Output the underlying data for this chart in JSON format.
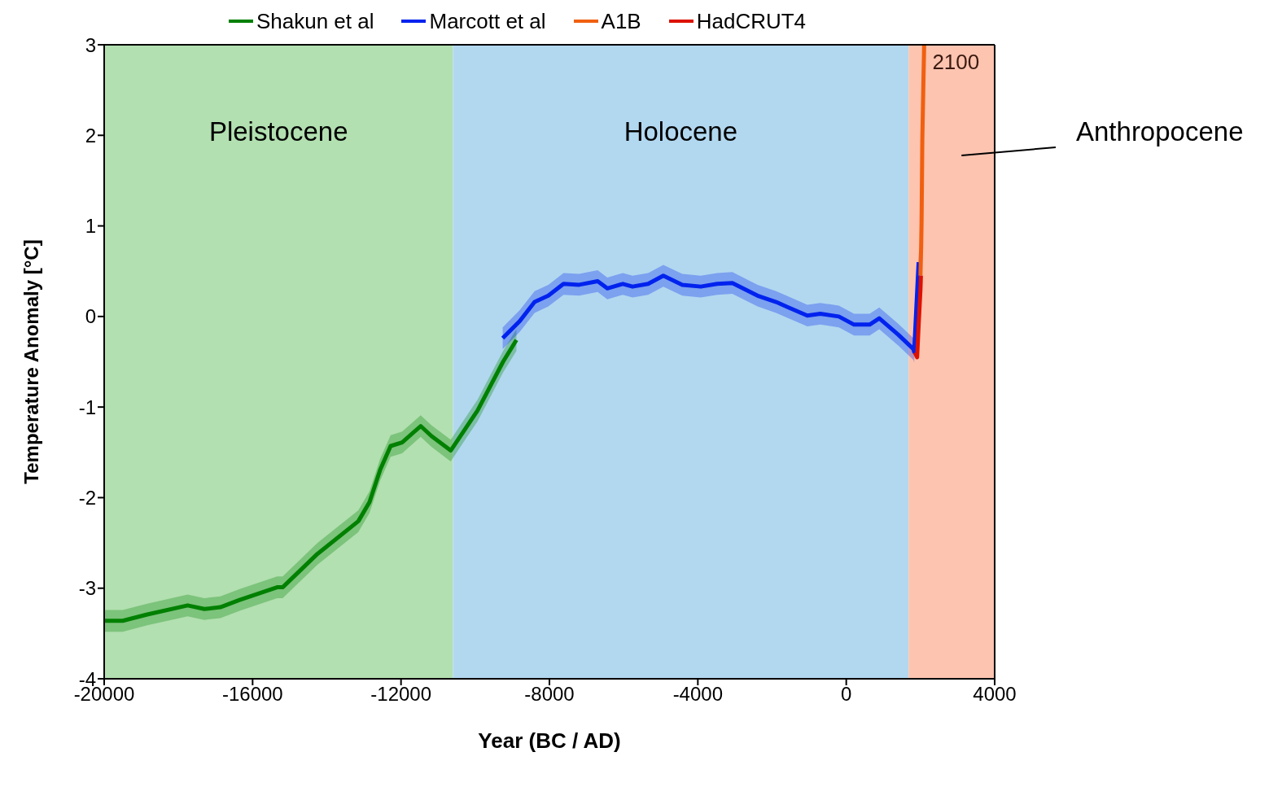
{
  "chart_data": {
    "type": "line",
    "xlabel": "Year (BC / AD)",
    "ylabel": "Temperature Anomaly [°C]",
    "xlim": [
      -20000,
      4000
    ],
    "xticks": [
      -20000,
      -16000,
      -12000,
      -8000,
      -4000,
      0,
      4000
    ],
    "ylim": [
      -4,
      3
    ],
    "yticks": [
      -4,
      -3,
      -2,
      -1,
      0,
      1,
      2,
      3
    ],
    "legend": "top",
    "marker": "none",
    "line_style": "solid",
    "series": [
      {
        "name": "Shakun et al",
        "color": "#008000",
        "x": [
          -20000,
          -19500,
          -18840,
          -17750,
          -17300,
          -16870,
          -16350,
          -15340,
          -15190,
          -14250,
          -13150,
          -12850,
          -12560,
          -12280,
          -11970,
          -11470,
          -11180,
          -10660,
          -10220,
          -9940,
          -9570,
          -9250,
          -8890
        ],
        "values": [
          -3.36,
          -3.36,
          -3.29,
          -3.19,
          -3.23,
          -3.21,
          -3.13,
          -2.99,
          -2.99,
          -2.62,
          -2.26,
          -2.05,
          -1.69,
          -1.43,
          -1.39,
          -1.21,
          -1.32,
          -1.48,
          -1.21,
          -1.04,
          -0.75,
          -0.5,
          -0.26
        ],
        "lower": [
          -3.48,
          -3.48,
          -3.41,
          -3.31,
          -3.35,
          -3.33,
          -3.25,
          -3.11,
          -3.11,
          -2.74,
          -2.38,
          -2.17,
          -1.81,
          -1.55,
          -1.51,
          -1.33,
          -1.44,
          -1.6,
          -1.33,
          -1.16,
          -0.87,
          -0.62,
          -0.38
        ],
        "upper": [
          -3.24,
          -3.24,
          -3.17,
          -3.07,
          -3.11,
          -3.09,
          -3.01,
          -2.87,
          -2.87,
          -2.5,
          -2.14,
          -1.93,
          -1.57,
          -1.31,
          -1.27,
          -1.09,
          -1.2,
          -1.36,
          -1.09,
          -0.92,
          -0.63,
          -0.38,
          -0.14
        ]
      },
      {
        "name": "Marcott et al",
        "color": "#0022ee",
        "x": [
          -9260,
          -8800,
          -8400,
          -8030,
          -7620,
          -7200,
          -6700,
          -6440,
          -6020,
          -5760,
          -5340,
          -4930,
          -4420,
          -3920,
          -3480,
          -3070,
          -2390,
          -1890,
          -1560,
          -1050,
          -700,
          -200,
          210,
          630,
          890,
          1400,
          1810,
          1830,
          1950
        ],
        "values": [
          -0.24,
          -0.05,
          0.16,
          0.23,
          0.36,
          0.35,
          0.39,
          0.31,
          0.36,
          0.33,
          0.36,
          0.45,
          0.35,
          0.33,
          0.36,
          0.37,
          0.23,
          0.16,
          0.1,
          0.01,
          0.03,
          0.0,
          -0.09,
          -0.09,
          -0.02,
          -0.2,
          -0.36,
          -0.39,
          0.6
        ],
        "lower": [
          -0.36,
          -0.17,
          0.04,
          0.11,
          0.24,
          0.23,
          0.27,
          0.19,
          0.24,
          0.21,
          0.24,
          0.33,
          0.23,
          0.21,
          0.24,
          0.25,
          0.11,
          0.04,
          -0.02,
          -0.11,
          -0.09,
          -0.12,
          -0.21,
          -0.21,
          -0.14,
          -0.32,
          -0.48,
          -0.51,
          0.48
        ],
        "upper": [
          -0.12,
          0.07,
          0.28,
          0.35,
          0.48,
          0.47,
          0.51,
          0.43,
          0.48,
          0.45,
          0.48,
          0.57,
          0.47,
          0.45,
          0.48,
          0.49,
          0.35,
          0.28,
          0.22,
          0.13,
          0.15,
          0.12,
          0.03,
          0.03,
          0.1,
          -0.08,
          -0.24,
          -0.27,
          0.72
        ]
      },
      {
        "name": "A1B",
        "color": "#f06010",
        "x": [
          2000,
          2020,
          2030,
          2050,
          2080,
          2100
        ],
        "values": [
          0.45,
          0.8,
          1.05,
          1.95,
          2.6,
          3.0
        ]
      },
      {
        "name": "HadCRUT4",
        "color": "#dd1100",
        "x": [
          1850,
          1910,
          1950,
          2000,
          2012
        ],
        "values": [
          -0.4,
          -0.45,
          -0.1,
          0.3,
          0.45
        ]
      }
    ],
    "bands": [
      {
        "axis": "x",
        "from": -20000,
        "to": -10600,
        "label": "Pleistocene",
        "color": "#b2e0b0"
      },
      {
        "axis": "x",
        "from": -10600,
        "to": 1680,
        "label": "Holocene",
        "color": "#b2d8f0"
      },
      {
        "axis": "x",
        "from": 1680,
        "to": 4000,
        "label": "Anthropocene",
        "color": "#fdc4b0"
      }
    ],
    "annotations": [
      {
        "text": "2100",
        "x": 2100,
        "y": 3
      }
    ]
  }
}
